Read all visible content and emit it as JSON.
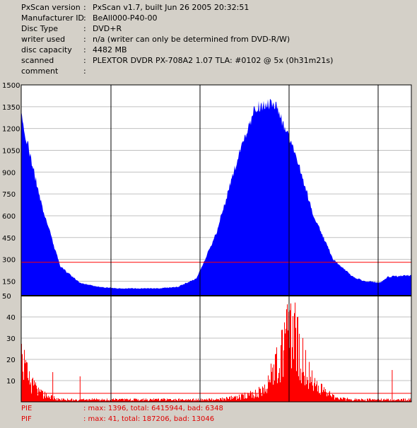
{
  "info": [
    {
      "key": "PxScan version",
      "value": "PxScan v1.7, built Jun 26 2005 20:32:51"
    },
    {
      "key": "Manufacturer ID",
      "value": "BeAll000-P40-00"
    },
    {
      "key": "Disc Type",
      "value": "DVD+R"
    },
    {
      "key": "writer used",
      "value": "n/a (writer can only be determined from DVD-R/W)"
    },
    {
      "key": "disc capacity",
      "value": "4482 MB"
    },
    {
      "key": "scanned",
      "value": "PLEXTOR DVDR PX-708A2 1.07 TLA: #0102 @ 5x (0h31m21s)"
    },
    {
      "key": "comment",
      "value": ""
    }
  ],
  "info_colon": ":",
  "footer": {
    "pie_label": "PIE",
    "pie_text": ": max: 1396, total: 6415944, bad: 6348",
    "pif_label": "PIF",
    "pif_text": ": max: 41, total: 187206, bad: 13046"
  },
  "colors": {
    "background": "#d4d0c8",
    "pie_fill": "#0000ff",
    "pif_fill": "#ff0000",
    "threshold": "#ff0000",
    "grid": "#000000"
  },
  "chart_data": [
    {
      "type": "area",
      "name": "PIE",
      "ylim": [
        50,
        1500
      ],
      "yticks": [
        1500,
        1350,
        1200,
        1050,
        900,
        750,
        600,
        450,
        300,
        150,
        50
      ],
      "threshold": 280,
      "x_fraction": [
        0,
        0.05,
        0.1,
        0.15,
        0.2,
        0.25,
        0.3,
        0.35,
        0.4,
        0.45,
        0.5,
        0.55,
        0.6,
        0.65,
        0.7,
        0.75,
        0.8,
        0.85,
        0.88,
        0.9,
        0.92,
        0.94,
        1.0
      ],
      "values": [
        1290,
        700,
        250,
        140,
        110,
        100,
        100,
        100,
        110,
        170,
        480,
        950,
        1350,
        1370,
        1050,
        600,
        300,
        180,
        150,
        145,
        140,
        180,
        190
      ],
      "grid": true
    },
    {
      "type": "bar",
      "name": "PIF",
      "ylim": [
        0,
        50
      ],
      "yticks": [
        40,
        30,
        20,
        10
      ],
      "threshold": 4,
      "x_fraction": [
        0,
        0.02,
        0.04,
        0.06,
        0.08,
        0.1,
        0.15,
        0.2,
        0.3,
        0.4,
        0.5,
        0.55,
        0.6,
        0.63,
        0.66,
        0.68,
        0.7,
        0.72,
        0.75,
        0.8,
        0.85,
        0.9,
        0.95,
        1.0
      ],
      "values": [
        20,
        9,
        5,
        3,
        2,
        1,
        1,
        1,
        1,
        1,
        1,
        2,
        4,
        8,
        20,
        35,
        30,
        20,
        8,
        2,
        1,
        1,
        1,
        1
      ],
      "spikes": [
        [
          0.08,
          14
        ],
        [
          0.15,
          12
        ],
        [
          0.95,
          15
        ]
      ],
      "grid": true
    }
  ]
}
